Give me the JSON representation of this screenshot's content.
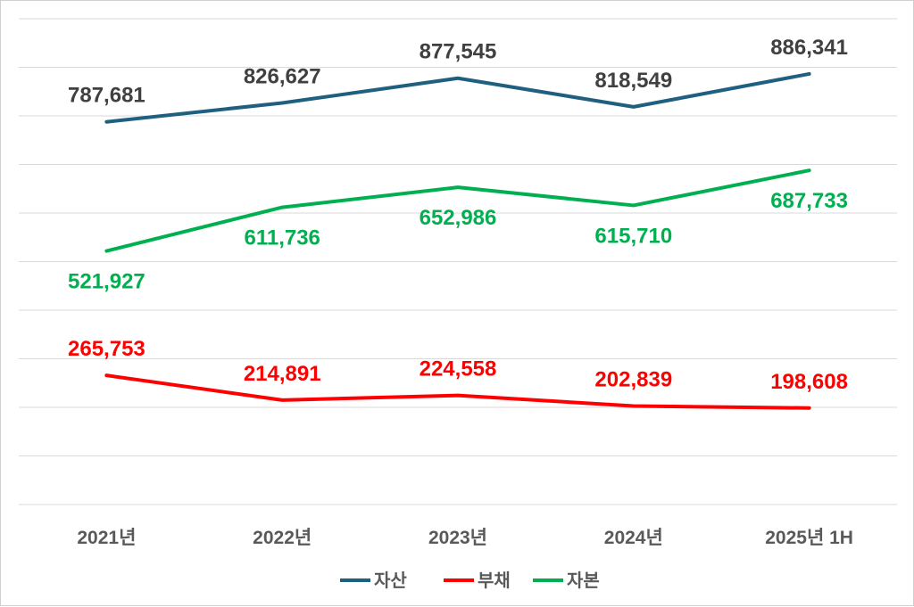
{
  "chart_data": {
    "type": "line",
    "categories": [
      "2021년",
      "2022년",
      "2023년",
      "2024년",
      "2025년 1H"
    ],
    "series": [
      {
        "name": "자산",
        "color": "#1f5f7f",
        "label_color": "#404040",
        "values": [
          787681,
          826627,
          877545,
          818549,
          886341
        ],
        "labels": [
          "787,681",
          "826,627",
          "877,545",
          "818,549",
          "886,341"
        ],
        "label_position": "above"
      },
      {
        "name": "부채",
        "color": "#ff0000",
        "label_color": "#ff0000",
        "values": [
          265753,
          214891,
          224558,
          202839,
          198608
        ],
        "labels": [
          "265,753",
          "214,891",
          "224,558",
          "202,839",
          "198,608"
        ],
        "label_position": "above"
      },
      {
        "name": "자본",
        "color": "#00b050",
        "label_color": "#00b050",
        "values": [
          521927,
          611736,
          652986,
          615710,
          687733
        ],
        "labels": [
          "521,927",
          "611,736",
          "652,986",
          "615,710",
          "687,733"
        ],
        "label_position": "below"
      }
    ],
    "ylim": [
      0,
      1000000
    ],
    "grid": true,
    "legend": "bottom",
    "title": "",
    "xlabel": "",
    "ylabel": ""
  }
}
